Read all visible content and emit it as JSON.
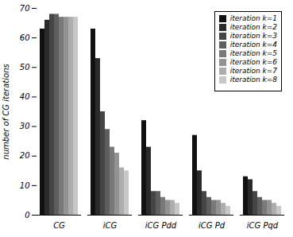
{
  "chart_data": {
    "type": "bar",
    "categories": [
      "CG",
      "iCG",
      "iCG Pdd",
      "iCG Pd",
      "iCG Pqd"
    ],
    "series": [
      {
        "name": "iteration k=1",
        "color": "#111111",
        "values": [
          63,
          63,
          32,
          27,
          13
        ]
      },
      {
        "name": "iteration k=2",
        "color": "#2b2b2b",
        "values": [
          66,
          53,
          23,
          15,
          12
        ]
      },
      {
        "name": "iteration k=3",
        "color": "#454545",
        "values": [
          68,
          35,
          8,
          8,
          8
        ]
      },
      {
        "name": "iteration k=4",
        "color": "#5f5f5f",
        "values": [
          68,
          29,
          8,
          6,
          6
        ]
      },
      {
        "name": "iteration k=5",
        "color": "#797979",
        "values": [
          67,
          23,
          6,
          5,
          5
        ]
      },
      {
        "name": "iteration k=6",
        "color": "#939393",
        "values": [
          67,
          21,
          5,
          5,
          5
        ]
      },
      {
        "name": "iteration k=7",
        "color": "#adadad",
        "values": [
          67,
          16,
          5,
          4,
          4
        ]
      },
      {
        "name": "iteration k=8",
        "color": "#c7c7c7",
        "values": [
          67,
          15,
          4,
          3,
          3
        ]
      }
    ],
    "ylabel": "number of CG iterations",
    "ylim": [
      0,
      70
    ],
    "yticks": [
      0,
      10,
      20,
      30,
      40,
      50,
      60,
      70
    ],
    "legend": "upper right",
    "grid": false
  }
}
